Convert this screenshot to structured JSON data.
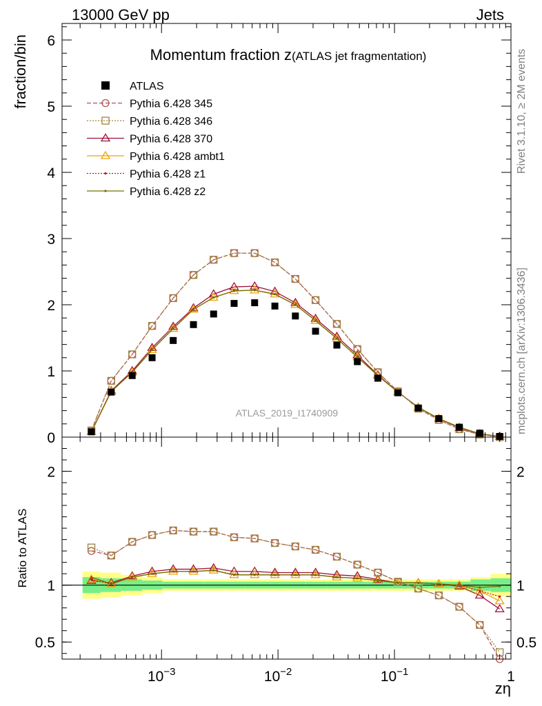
{
  "header": {
    "left": "13000 GeV pp",
    "right": "Jets"
  },
  "side_labels": {
    "rivet": "Rivet 3.1.10, ≥ 2M events",
    "mcplots": "mcplots.cern.ch [arXiv:1306.3436]"
  },
  "colors": {
    "band_inner": "#77ee88",
    "band_outer": "#ffff88"
  },
  "chart_data": [
    {
      "type": "scatter",
      "title": "Momentum fraction z",
      "subtitle": "(ATLAS jet fragmentation)",
      "ylabel": "fraction/bin",
      "xlabel": "zη",
      "watermark": "ATLAS_2019_I1740909",
      "xscale": "log",
      "xlim": [
        0.00014,
        1.0
      ],
      "ylim": [
        0,
        6.25
      ],
      "yticks": [
        0,
        1,
        2,
        3,
        4,
        5,
        6
      ],
      "xticks": [
        {
          "value": 0.001,
          "base": "10",
          "exp": "−3"
        },
        {
          "value": 0.01,
          "base": "10",
          "exp": "−2"
        },
        {
          "value": 0.1,
          "base": "10",
          "exp": "−1"
        },
        {
          "value": 1,
          "base": "1",
          "exp": ""
        }
      ],
      "x": [
        0.00025,
        0.00037,
        0.00056,
        0.00083,
        0.00126,
        0.00188,
        0.0028,
        0.0042,
        0.0063,
        0.0094,
        0.0141,
        0.021,
        0.032,
        0.048,
        0.072,
        0.107,
        0.16,
        0.24,
        0.36,
        0.54,
        0.8
      ],
      "series": [
        {
          "name": "ATLAS",
          "marker": "filled-square",
          "color": "#000000",
          "dash": "none",
          "values": [
            0.08,
            0.68,
            0.93,
            1.2,
            1.46,
            1.7,
            1.86,
            2.02,
            2.03,
            1.98,
            1.83,
            1.6,
            1.39,
            1.14,
            0.89,
            0.67,
            0.44,
            0.28,
            0.15,
            0.06,
            0.01
          ]
        },
        {
          "name": "Pythia 6.428 345",
          "marker": "circle",
          "color": "#b05050",
          "dash": "6,3",
          "values": [
            0.1,
            0.85,
            1.25,
            1.68,
            2.1,
            2.45,
            2.68,
            2.78,
            2.78,
            2.64,
            2.39,
            2.07,
            1.71,
            1.33,
            0.98,
            0.69,
            0.43,
            0.26,
            0.12,
            0.04,
            0.01
          ]
        },
        {
          "name": "Pythia 6.428 346",
          "marker": "square",
          "color": "#a08040",
          "dash": "2,2",
          "values": [
            0.1,
            0.85,
            1.25,
            1.68,
            2.1,
            2.45,
            2.68,
            2.78,
            2.78,
            2.64,
            2.39,
            2.07,
            1.71,
            1.33,
            0.98,
            0.69,
            0.43,
            0.26,
            0.12,
            0.04,
            0.0
          ]
        },
        {
          "name": "Pythia 6.428 370",
          "marker": "triangle",
          "color": "#a0103a",
          "dash": "none",
          "values": [
            0.08,
            0.7,
            1.0,
            1.35,
            1.67,
            1.95,
            2.16,
            2.27,
            2.28,
            2.2,
            2.03,
            1.79,
            1.52,
            1.24,
            0.94,
            0.68,
            0.45,
            0.28,
            0.14,
            0.05,
            0.01
          ]
        },
        {
          "name": "Pythia 6.428 ambt1",
          "marker": "triangle",
          "color": "#f0a000",
          "dash": "none",
          "values": [
            0.08,
            0.69,
            0.98,
            1.32,
            1.64,
            1.93,
            2.11,
            2.21,
            2.22,
            2.16,
            2.0,
            1.76,
            1.49,
            1.21,
            0.93,
            0.68,
            0.45,
            0.28,
            0.15,
            0.05,
            0.01
          ]
        },
        {
          "name": "Pythia 6.428 z1",
          "marker": "dot",
          "color": "#d01010",
          "dash": "2,2",
          "values": [
            0.08,
            0.69,
            0.98,
            1.32,
            1.64,
            1.93,
            2.11,
            2.21,
            2.22,
            2.16,
            2.0,
            1.76,
            1.49,
            1.21,
            0.93,
            0.68,
            0.45,
            0.28,
            0.15,
            0.05,
            0.01
          ]
        },
        {
          "name": "Pythia 6.428 z2",
          "marker": "dot",
          "color": "#707000",
          "dash": "none",
          "values": [
            0.08,
            0.69,
            0.98,
            1.32,
            1.64,
            1.93,
            2.11,
            2.21,
            2.22,
            2.16,
            2.0,
            1.76,
            1.49,
            1.21,
            0.93,
            0.68,
            0.45,
            0.28,
            0.15,
            0.05,
            0.01
          ]
        }
      ]
    },
    {
      "type": "scatter",
      "ylabel": "Ratio to ATLAS",
      "xscale": "log",
      "xlim": [
        0.00014,
        1.0
      ],
      "ylim": [
        0.35,
        2.3
      ],
      "yticks": [
        0.5,
        1,
        2
      ],
      "x": [
        0.00025,
        0.00037,
        0.00056,
        0.00083,
        0.00126,
        0.00188,
        0.0028,
        0.0042,
        0.0063,
        0.0094,
        0.0141,
        0.021,
        0.032,
        0.048,
        0.072,
        0.107,
        0.16,
        0.24,
        0.36,
        0.54,
        0.8
      ],
      "band": {
        "edges": [
          0.00021,
          0.0003,
          0.00045,
          0.00068,
          0.00102,
          0.00153,
          0.0023,
          0.0034,
          0.0052,
          0.0077,
          0.0116,
          0.0174,
          0.026,
          0.039,
          0.059,
          0.088,
          0.132,
          0.198,
          0.3,
          0.45,
          0.67,
          1.0
        ],
        "outer": [
          0.12,
          0.11,
          0.09,
          0.07,
          0.05,
          0.05,
          0.05,
          0.05,
          0.05,
          0.05,
          0.05,
          0.05,
          0.05,
          0.05,
          0.05,
          0.05,
          0.05,
          0.05,
          0.05,
          0.07,
          0.1
        ],
        "inner": [
          0.07,
          0.06,
          0.05,
          0.04,
          0.03,
          0.03,
          0.03,
          0.03,
          0.03,
          0.03,
          0.03,
          0.03,
          0.03,
          0.03,
          0.03,
          0.03,
          0.03,
          0.03,
          0.03,
          0.05,
          0.06
        ]
      },
      "series": [
        {
          "name": "Pythia 6.428 345",
          "values": [
            1.3,
            1.26,
            1.38,
            1.44,
            1.48,
            1.47,
            1.47,
            1.42,
            1.41,
            1.37,
            1.34,
            1.31,
            1.25,
            1.18,
            1.11,
            1.03,
            0.97,
            0.91,
            0.81,
            0.65,
            0.35
          ]
        },
        {
          "name": "Pythia 6.428 346",
          "values": [
            1.33,
            1.26,
            1.38,
            1.44,
            1.48,
            1.47,
            1.47,
            1.42,
            1.41,
            1.37,
            1.34,
            1.31,
            1.25,
            1.18,
            1.11,
            1.03,
            0.97,
            0.91,
            0.81,
            0.65,
            0.41
          ]
        },
        {
          "name": "Pythia 6.428 370",
          "values": [
            1.04,
            1.02,
            1.08,
            1.12,
            1.14,
            1.14,
            1.15,
            1.12,
            1.12,
            1.11,
            1.11,
            1.11,
            1.09,
            1.08,
            1.05,
            1.02,
            1.02,
            1.01,
            0.99,
            0.91,
            0.79
          ]
        },
        {
          "name": "Pythia 6.428 ambt1",
          "values": [
            1.05,
            1.01,
            1.07,
            1.1,
            1.12,
            1.12,
            1.13,
            1.09,
            1.09,
            1.09,
            1.09,
            1.09,
            1.07,
            1.06,
            1.04,
            1.02,
            1.02,
            1.01,
            1.0,
            0.95,
            0.86
          ]
        },
        {
          "name": "Pythia 6.428 z1",
          "values": [
            1.05,
            1.01,
            1.07,
            1.1,
            1.12,
            1.12,
            1.13,
            1.09,
            1.09,
            1.09,
            1.09,
            1.09,
            1.07,
            1.06,
            1.04,
            1.02,
            1.02,
            1.01,
            1.0,
            0.95,
            0.9
          ]
        },
        {
          "name": "Pythia 6.428 z2",
          "values": [
            1.07,
            1.01,
            1.07,
            1.1,
            1.12,
            1.12,
            1.13,
            1.09,
            1.09,
            1.09,
            1.09,
            1.09,
            1.07,
            1.06,
            1.04,
            1.02,
            1.02,
            1.01,
            1.0,
            0.98,
            0.99
          ]
        }
      ]
    }
  ]
}
